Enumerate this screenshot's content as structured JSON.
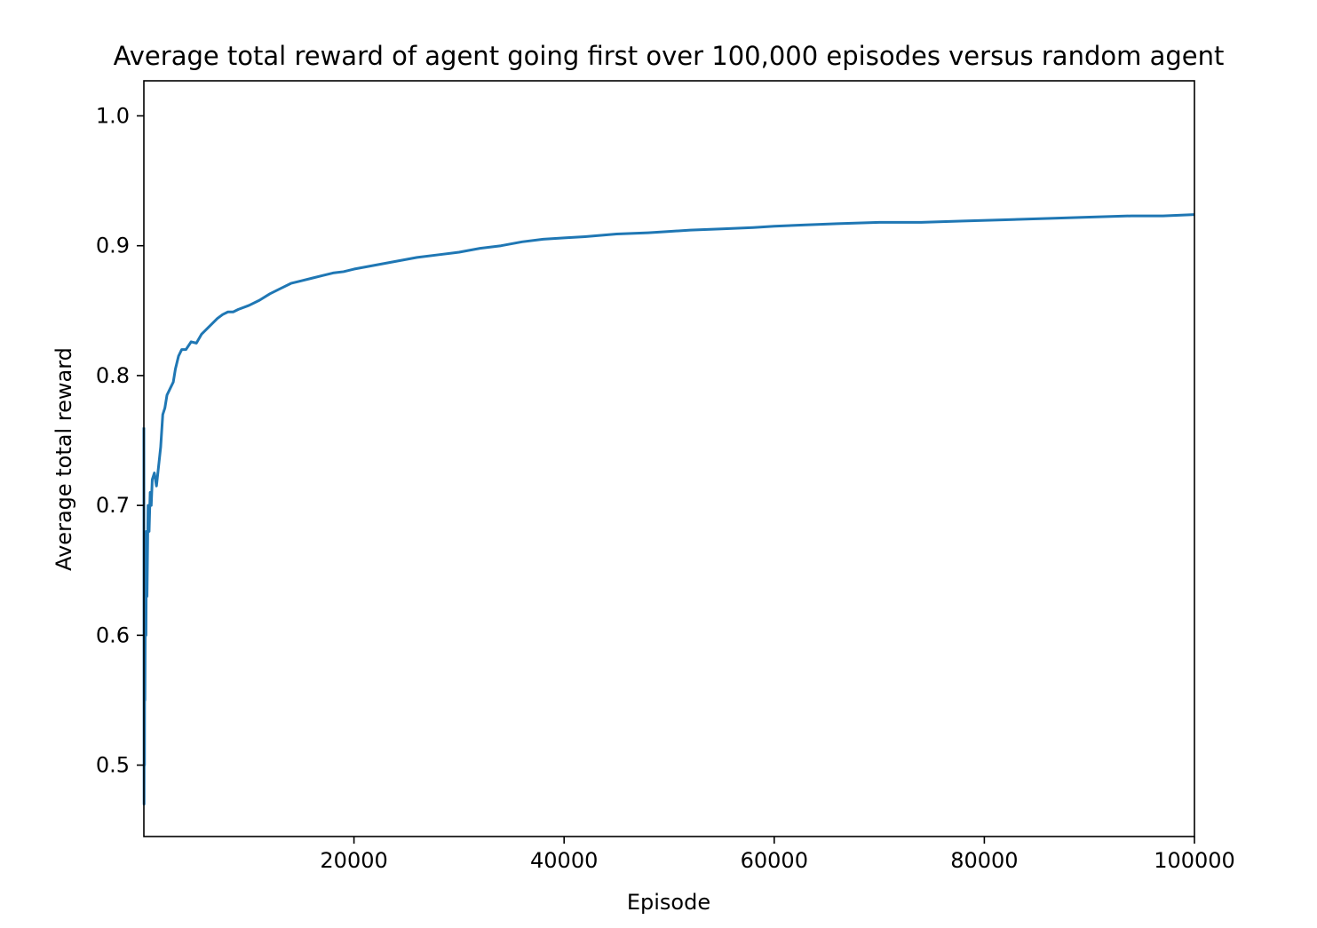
{
  "chart_data": {
    "type": "line",
    "title": "Average total reward of agent going first over 100,000 episodes versus random agent",
    "xlabel": "Episode",
    "ylabel": "Average total reward",
    "xlim": [
      0,
      100000
    ],
    "ylim": [
      0.445,
      1.027
    ],
    "xticks": [
      20000,
      40000,
      60000,
      80000,
      100000
    ],
    "xtick_labels": [
      "20000",
      "40000",
      "60000",
      "80000",
      "100000"
    ],
    "yticks": [
      0.5,
      0.6,
      0.7,
      0.8,
      0.9,
      1.0
    ],
    "ytick_labels": [
      "0.5",
      "0.6",
      "0.7",
      "0.8",
      "0.9",
      "1.0"
    ],
    "grid": false,
    "series": [
      {
        "color": "#1f77b4",
        "x": [
          1,
          20,
          40,
          60,
          80,
          100,
          150,
          200,
          250,
          300,
          400,
          500,
          600,
          700,
          800,
          1000,
          1200,
          1400,
          1600,
          1800,
          2000,
          2200,
          2500,
          2800,
          3000,
          3300,
          3600,
          4000,
          4500,
          5000,
          5500,
          6000,
          6500,
          7000,
          7500,
          8000,
          8500,
          9000,
          10000,
          11000,
          12000,
          13000,
          14000,
          15000,
          16000,
          17000,
          18000,
          19000,
          20000,
          22000,
          24000,
          26000,
          28000,
          30000,
          32000,
          34000,
          36000,
          38000,
          40000,
          42000,
          45000,
          48000,
          50000,
          52000,
          55000,
          58000,
          60000,
          63000,
          66000,
          70000,
          74000,
          78000,
          82000,
          86000,
          90000,
          94000,
          97000,
          100000
        ],
        "y": [
          0.76,
          0.47,
          0.58,
          0.5,
          0.62,
          0.55,
          0.64,
          0.6,
          0.68,
          0.63,
          0.7,
          0.68,
          0.71,
          0.7,
          0.72,
          0.725,
          0.715,
          0.73,
          0.745,
          0.77,
          0.775,
          0.785,
          0.79,
          0.795,
          0.805,
          0.815,
          0.82,
          0.82,
          0.826,
          0.825,
          0.832,
          0.836,
          0.84,
          0.844,
          0.847,
          0.849,
          0.849,
          0.851,
          0.854,
          0.858,
          0.863,
          0.867,
          0.871,
          0.873,
          0.875,
          0.877,
          0.879,
          0.88,
          0.882,
          0.885,
          0.888,
          0.891,
          0.893,
          0.895,
          0.898,
          0.9,
          0.903,
          0.905,
          0.906,
          0.907,
          0.909,
          0.91,
          0.911,
          0.912,
          0.913,
          0.914,
          0.915,
          0.916,
          0.917,
          0.918,
          0.918,
          0.919,
          0.92,
          0.921,
          0.922,
          0.923,
          0.923,
          0.924
        ]
      }
    ]
  }
}
